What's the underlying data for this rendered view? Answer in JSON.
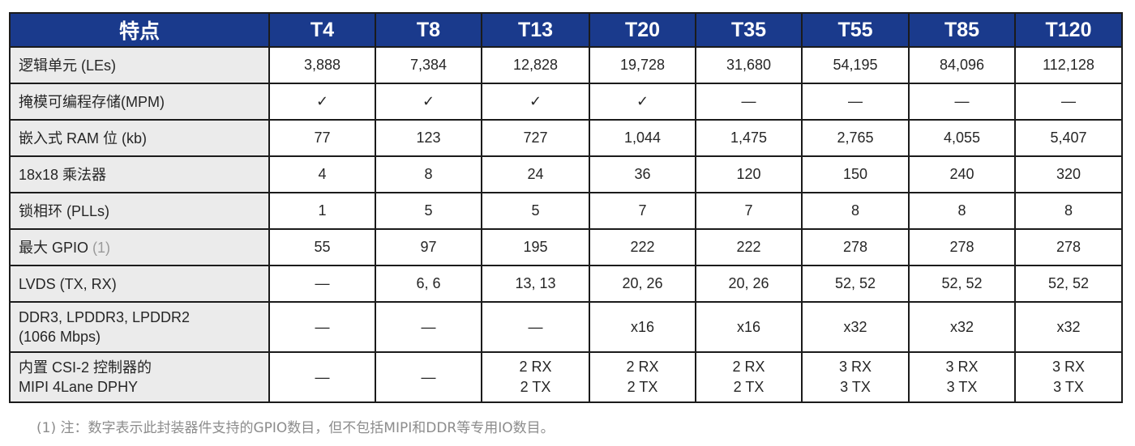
{
  "header": {
    "feature": "特点",
    "models": [
      "T4",
      "T8",
      "T13",
      "T20",
      "T35",
      "T55",
      "T85",
      "T120"
    ]
  },
  "rows": [
    {
      "feature": "逻辑单元 (LEs)",
      "values": [
        "3,888",
        "7,384",
        "12,828",
        "19,728",
        "31,680",
        "54,195",
        "84,096",
        "112,128"
      ]
    },
    {
      "feature": "掩模可编程存储(MPM)",
      "values": [
        "✓",
        "✓",
        "✓",
        "✓",
        "—",
        "—",
        "—",
        "—"
      ]
    },
    {
      "feature": "嵌入式 RAM 位 (kb)",
      "values": [
        "77",
        "123",
        "727",
        "1,044",
        "1,475",
        "2,765",
        "4,055",
        "5,407"
      ]
    },
    {
      "feature": "18x18 乘法器",
      "values": [
        "4",
        "8",
        "24",
        "36",
        "120",
        "150",
        "240",
        "320"
      ]
    },
    {
      "feature": "锁相环 (PLLs)",
      "values": [
        "1",
        "5",
        "5",
        "7",
        "7",
        "8",
        "8",
        "8"
      ]
    },
    {
      "feature": "最大 GPIO",
      "feature_note": "(1)",
      "values": [
        "55",
        "97",
        "195",
        "222",
        "222",
        "278",
        "278",
        "278"
      ]
    },
    {
      "feature": "LVDS (TX, RX)",
      "values": [
        "—",
        "6, 6",
        "13, 13",
        "20, 26",
        "20, 26",
        "52, 52",
        "52, 52",
        "52, 52"
      ]
    },
    {
      "feature_line1": "DDR3, LPDDR3, LPDDR2",
      "feature_line2": "(1066 Mbps)",
      "values": [
        "—",
        "—",
        "—",
        "x16",
        "x16",
        "x32",
        "x32",
        "x32"
      ]
    },
    {
      "feature_line1": "内置 CSI-2 控制器的",
      "feature_line2": "MIPI 4Lane DPHY",
      "values": [
        {
          "l1": "—",
          "l2": ""
        },
        {
          "l1": "—",
          "l2": ""
        },
        {
          "l1": "2 RX",
          "l2": "2 TX"
        },
        {
          "l1": "2 RX",
          "l2": "2 TX"
        },
        {
          "l1": "2 RX",
          "l2": "2 TX"
        },
        {
          "l1": "3 RX",
          "l2": "3 TX"
        },
        {
          "l1": "3 RX",
          "l2": "3 TX"
        },
        {
          "l1": "3 RX",
          "l2": "3 TX"
        }
      ]
    }
  ],
  "footnote": "(1) 注：数字表示此封装器件支持的GPIO数目，但不包括MIPI和DDR等专用IO数目。"
}
